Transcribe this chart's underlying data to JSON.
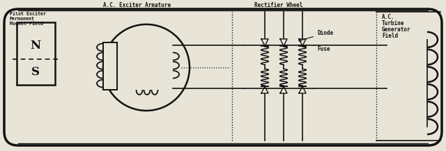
{
  "bg_color": "#e8e4d8",
  "line_color": "#111111",
  "title_label1": "Pilot Exciter",
  "title_label2": "Permonent",
  "title_label3": "Mognet Field",
  "label_ac_exciter": "A.C. Exciter Armature",
  "label_rectifier": "Rectifier Wheel",
  "label_diode": "Diode",
  "label_fuse": "Fuse",
  "label_ac_turbine1": "A.C.",
  "label_ac_turbine2": "Turbine",
  "label_ac_turbine3": "Generator",
  "label_ac_turbine4": "Field",
  "N_label": "N",
  "S_label": "S",
  "fig_width": 6.4,
  "fig_height": 2.17,
  "dpi": 100
}
